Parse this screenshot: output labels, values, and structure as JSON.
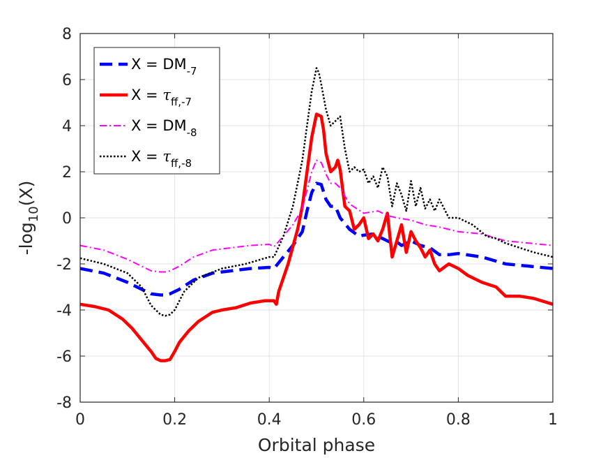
{
  "chart_data": {
    "type": "line",
    "title": "",
    "xlabel": "Orbital phase",
    "ylabel": {
      "main": "-log",
      "sub": "10",
      "tail": "(X)"
    },
    "xlim": [
      0,
      1
    ],
    "ylim": [
      -8,
      8
    ],
    "xticks": [
      0,
      0.2,
      0.4,
      0.6,
      0.8,
      1
    ],
    "xtick_labels": [
      "0",
      "0.2",
      "0.4",
      "0.6",
      "0.8",
      "1"
    ],
    "yticks": [
      -8,
      -6,
      -4,
      -2,
      0,
      2,
      4,
      6,
      8
    ],
    "ytick_labels": [
      "-8",
      "-6",
      "-4",
      "-2",
      "0",
      "2",
      "4",
      "6",
      "8"
    ],
    "grid": true,
    "legend_position": "top-left",
    "series": [
      {
        "name": "X = DM-7",
        "label_main": "X = DM",
        "label_sub": "-7",
        "label_greek": false,
        "color": "#0000ff",
        "style": "dashed",
        "x": [
          0,
          0.05,
          0.1,
          0.13,
          0.15,
          0.17,
          0.18,
          0.19,
          0.21,
          0.24,
          0.28,
          0.32,
          0.36,
          0.4,
          0.41,
          0.43,
          0.45,
          0.47,
          0.48,
          0.49,
          0.5,
          0.51,
          0.52,
          0.53,
          0.54,
          0.55,
          0.57,
          0.59,
          0.6,
          0.62,
          0.64,
          0.65,
          0.66,
          0.67,
          0.68,
          0.7,
          0.72,
          0.74,
          0.76,
          0.78,
          0.8,
          0.85,
          0.9,
          0.95,
          1
        ],
        "y": [
          -2.2,
          -2.4,
          -2.8,
          -3.1,
          -3.3,
          -3.35,
          -3.35,
          -3.3,
          -3.1,
          -2.7,
          -2.4,
          -2.3,
          -2.2,
          -2.15,
          -2.2,
          -1.7,
          -1.2,
          -0.6,
          0.3,
          1.1,
          1.5,
          1.45,
          0.8,
          0.5,
          0.5,
          0.0,
          -0.5,
          -0.8,
          -0.75,
          -0.7,
          -0.9,
          -1.0,
          -1.1,
          -1.05,
          -1.2,
          -1.0,
          -1.2,
          -1.3,
          -1.6,
          -1.6,
          -1.55,
          -1.7,
          -2.0,
          -2.1,
          -2.2
        ]
      },
      {
        "name": "X = τff,-7",
        "label_main": "X = ",
        "label_greek": true,
        "label_sub": "ff,-7",
        "color": "#ff0000",
        "style": "solid",
        "x": [
          0,
          0.03,
          0.06,
          0.09,
          0.11,
          0.13,
          0.15,
          0.16,
          0.17,
          0.18,
          0.19,
          0.2,
          0.21,
          0.23,
          0.25,
          0.28,
          0.3,
          0.33,
          0.36,
          0.39,
          0.41,
          0.415,
          0.42,
          0.44,
          0.46,
          0.47,
          0.48,
          0.49,
          0.5,
          0.51,
          0.515,
          0.52,
          0.53,
          0.54,
          0.545,
          0.55,
          0.56,
          0.57,
          0.58,
          0.59,
          0.6,
          0.61,
          0.62,
          0.63,
          0.64,
          0.65,
          0.66,
          0.67,
          0.68,
          0.69,
          0.7,
          0.71,
          0.72,
          0.73,
          0.74,
          0.75,
          0.76,
          0.78,
          0.8,
          0.82,
          0.85,
          0.88,
          0.9,
          0.93,
          0.96,
          1
        ],
        "y": [
          -3.75,
          -3.85,
          -4.0,
          -4.4,
          -4.8,
          -5.3,
          -5.8,
          -6.1,
          -6.2,
          -6.2,
          -6.15,
          -5.8,
          -5.4,
          -4.9,
          -4.5,
          -4.1,
          -4.0,
          -3.9,
          -3.7,
          -3.6,
          -3.6,
          -3.75,
          -3.2,
          -2.0,
          -0.5,
          0.5,
          2.0,
          3.5,
          4.5,
          4.4,
          3.8,
          2.8,
          2.0,
          2.2,
          2.5,
          2.1,
          0.5,
          0.3,
          -0.5,
          -0.3,
          0.0,
          -0.9,
          -0.7,
          -1.0,
          -0.5,
          0.2,
          -1.7,
          -1.0,
          -0.3,
          -1.5,
          -0.6,
          -1.0,
          -1.3,
          -1.7,
          -1.4,
          -2.0,
          -2.3,
          -2.0,
          -2.2,
          -2.5,
          -2.8,
          -3.0,
          -3.4,
          -3.4,
          -3.5,
          -3.75
        ]
      },
      {
        "name": "X = DM-8",
        "label_main": "X = DM",
        "label_sub": "-8",
        "label_greek": false,
        "color": "#ff00ff",
        "style": "dashdot",
        "x": [
          0,
          0.05,
          0.1,
          0.13,
          0.15,
          0.17,
          0.18,
          0.19,
          0.21,
          0.24,
          0.28,
          0.32,
          0.36,
          0.4,
          0.41,
          0.43,
          0.45,
          0.47,
          0.48,
          0.49,
          0.5,
          0.51,
          0.52,
          0.53,
          0.54,
          0.55,
          0.57,
          0.6,
          0.63,
          0.65,
          0.67,
          0.7,
          0.73,
          0.76,
          0.8,
          0.85,
          0.9,
          0.95,
          1
        ],
        "y": [
          -1.2,
          -1.4,
          -1.8,
          -2.1,
          -2.3,
          -2.35,
          -2.35,
          -2.3,
          -2.1,
          -1.7,
          -1.4,
          -1.3,
          -1.2,
          -1.15,
          -1.25,
          -0.8,
          -0.3,
          0.4,
          1.2,
          2.0,
          2.5,
          2.4,
          1.9,
          1.5,
          1.5,
          1.3,
          0.6,
          0.2,
          0.3,
          0.1,
          0.0,
          -0.1,
          -0.3,
          -0.4,
          -0.6,
          -0.7,
          -1.0,
          -1.1,
          -1.2
        ]
      },
      {
        "name": "X = τff,-8",
        "label_main": "X = ",
        "label_greek": true,
        "label_sub": "ff,-8",
        "color": "#000000",
        "style": "dotted",
        "x": [
          0,
          0.05,
          0.1,
          0.13,
          0.15,
          0.17,
          0.18,
          0.19,
          0.2,
          0.22,
          0.25,
          0.3,
          0.35,
          0.4,
          0.41,
          0.43,
          0.45,
          0.47,
          0.48,
          0.49,
          0.5,
          0.505,
          0.51,
          0.52,
          0.53,
          0.54,
          0.55,
          0.56,
          0.57,
          0.58,
          0.59,
          0.6,
          0.61,
          0.62,
          0.63,
          0.64,
          0.65,
          0.66,
          0.67,
          0.68,
          0.69,
          0.7,
          0.71,
          0.72,
          0.73,
          0.74,
          0.75,
          0.76,
          0.77,
          0.78,
          0.8,
          0.83,
          0.86,
          0.88,
          0.9,
          0.93,
          0.96,
          1
        ],
        "y": [
          -1.75,
          -2.0,
          -2.4,
          -3.0,
          -3.8,
          -4.2,
          -4.25,
          -4.2,
          -4.0,
          -3.2,
          -2.6,
          -2.2,
          -2.0,
          -1.7,
          -1.7,
          -0.8,
          0.5,
          2.5,
          4.0,
          5.5,
          6.5,
          6.3,
          5.8,
          4.7,
          4.0,
          4.2,
          4.4,
          3.0,
          2.0,
          2.2,
          2.0,
          2.1,
          1.5,
          1.8,
          1.3,
          2.2,
          1.8,
          0.5,
          1.5,
          1.0,
          0.3,
          1.6,
          0.5,
          1.3,
          0.4,
          0.8,
          0.3,
          0.8,
          0.4,
          0.0,
          0.0,
          -0.3,
          -0.8,
          -0.9,
          -1.1,
          -1.3,
          -1.5,
          -1.7
        ]
      }
    ]
  }
}
